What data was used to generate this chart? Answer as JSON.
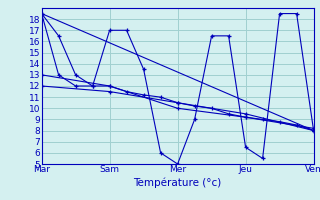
{
  "title": "",
  "xlabel": "Température (°c)",
  "ylabel": "",
  "background_color": "#d4f0f0",
  "grid_color": "#a0d0d0",
  "line_color": "#0000bb",
  "xlim": [
    0,
    48
  ],
  "ylim": [
    5,
    19
  ],
  "yticks": [
    5,
    6,
    7,
    8,
    9,
    10,
    11,
    12,
    13,
    14,
    15,
    16,
    17,
    18
  ],
  "xtick_positions": [
    0,
    12,
    24,
    36,
    48
  ],
  "xtick_labels": [
    "Mar",
    "Sam",
    "Mer",
    "Jeu",
    "Ven"
  ],
  "series": [
    {
      "x": [
        0,
        3,
        6,
        9,
        12,
        15,
        18,
        21,
        24,
        27,
        30,
        33,
        36,
        39,
        42,
        45,
        48
      ],
      "y": [
        18.5,
        16.5,
        13.0,
        12.0,
        12.0,
        11.5,
        11.2,
        11.0,
        10.5,
        10.2,
        10.0,
        9.5,
        9.2,
        9.0,
        8.8,
        8.5,
        8.0
      ]
    },
    {
      "x": [
        0,
        3,
        6,
        9,
        12,
        15,
        18,
        21,
        24,
        27,
        30,
        33,
        36,
        39,
        42,
        45,
        48
      ],
      "y": [
        18.5,
        13.0,
        12.0,
        12.0,
        17.0,
        17.0,
        13.5,
        6.0,
        5.0,
        9.0,
        16.5,
        16.5,
        6.5,
        5.5,
        18.5,
        18.5,
        8.0
      ]
    },
    {
      "x": [
        0,
        48
      ],
      "y": [
        18.5,
        8.0
      ]
    },
    {
      "x": [
        0,
        12,
        24,
        36,
        48
      ],
      "y": [
        12.0,
        11.5,
        10.5,
        9.5,
        8.0
      ]
    },
    {
      "x": [
        0,
        12,
        24,
        36,
        48
      ],
      "y": [
        13.0,
        12.0,
        10.0,
        9.2,
        8.2
      ]
    }
  ]
}
